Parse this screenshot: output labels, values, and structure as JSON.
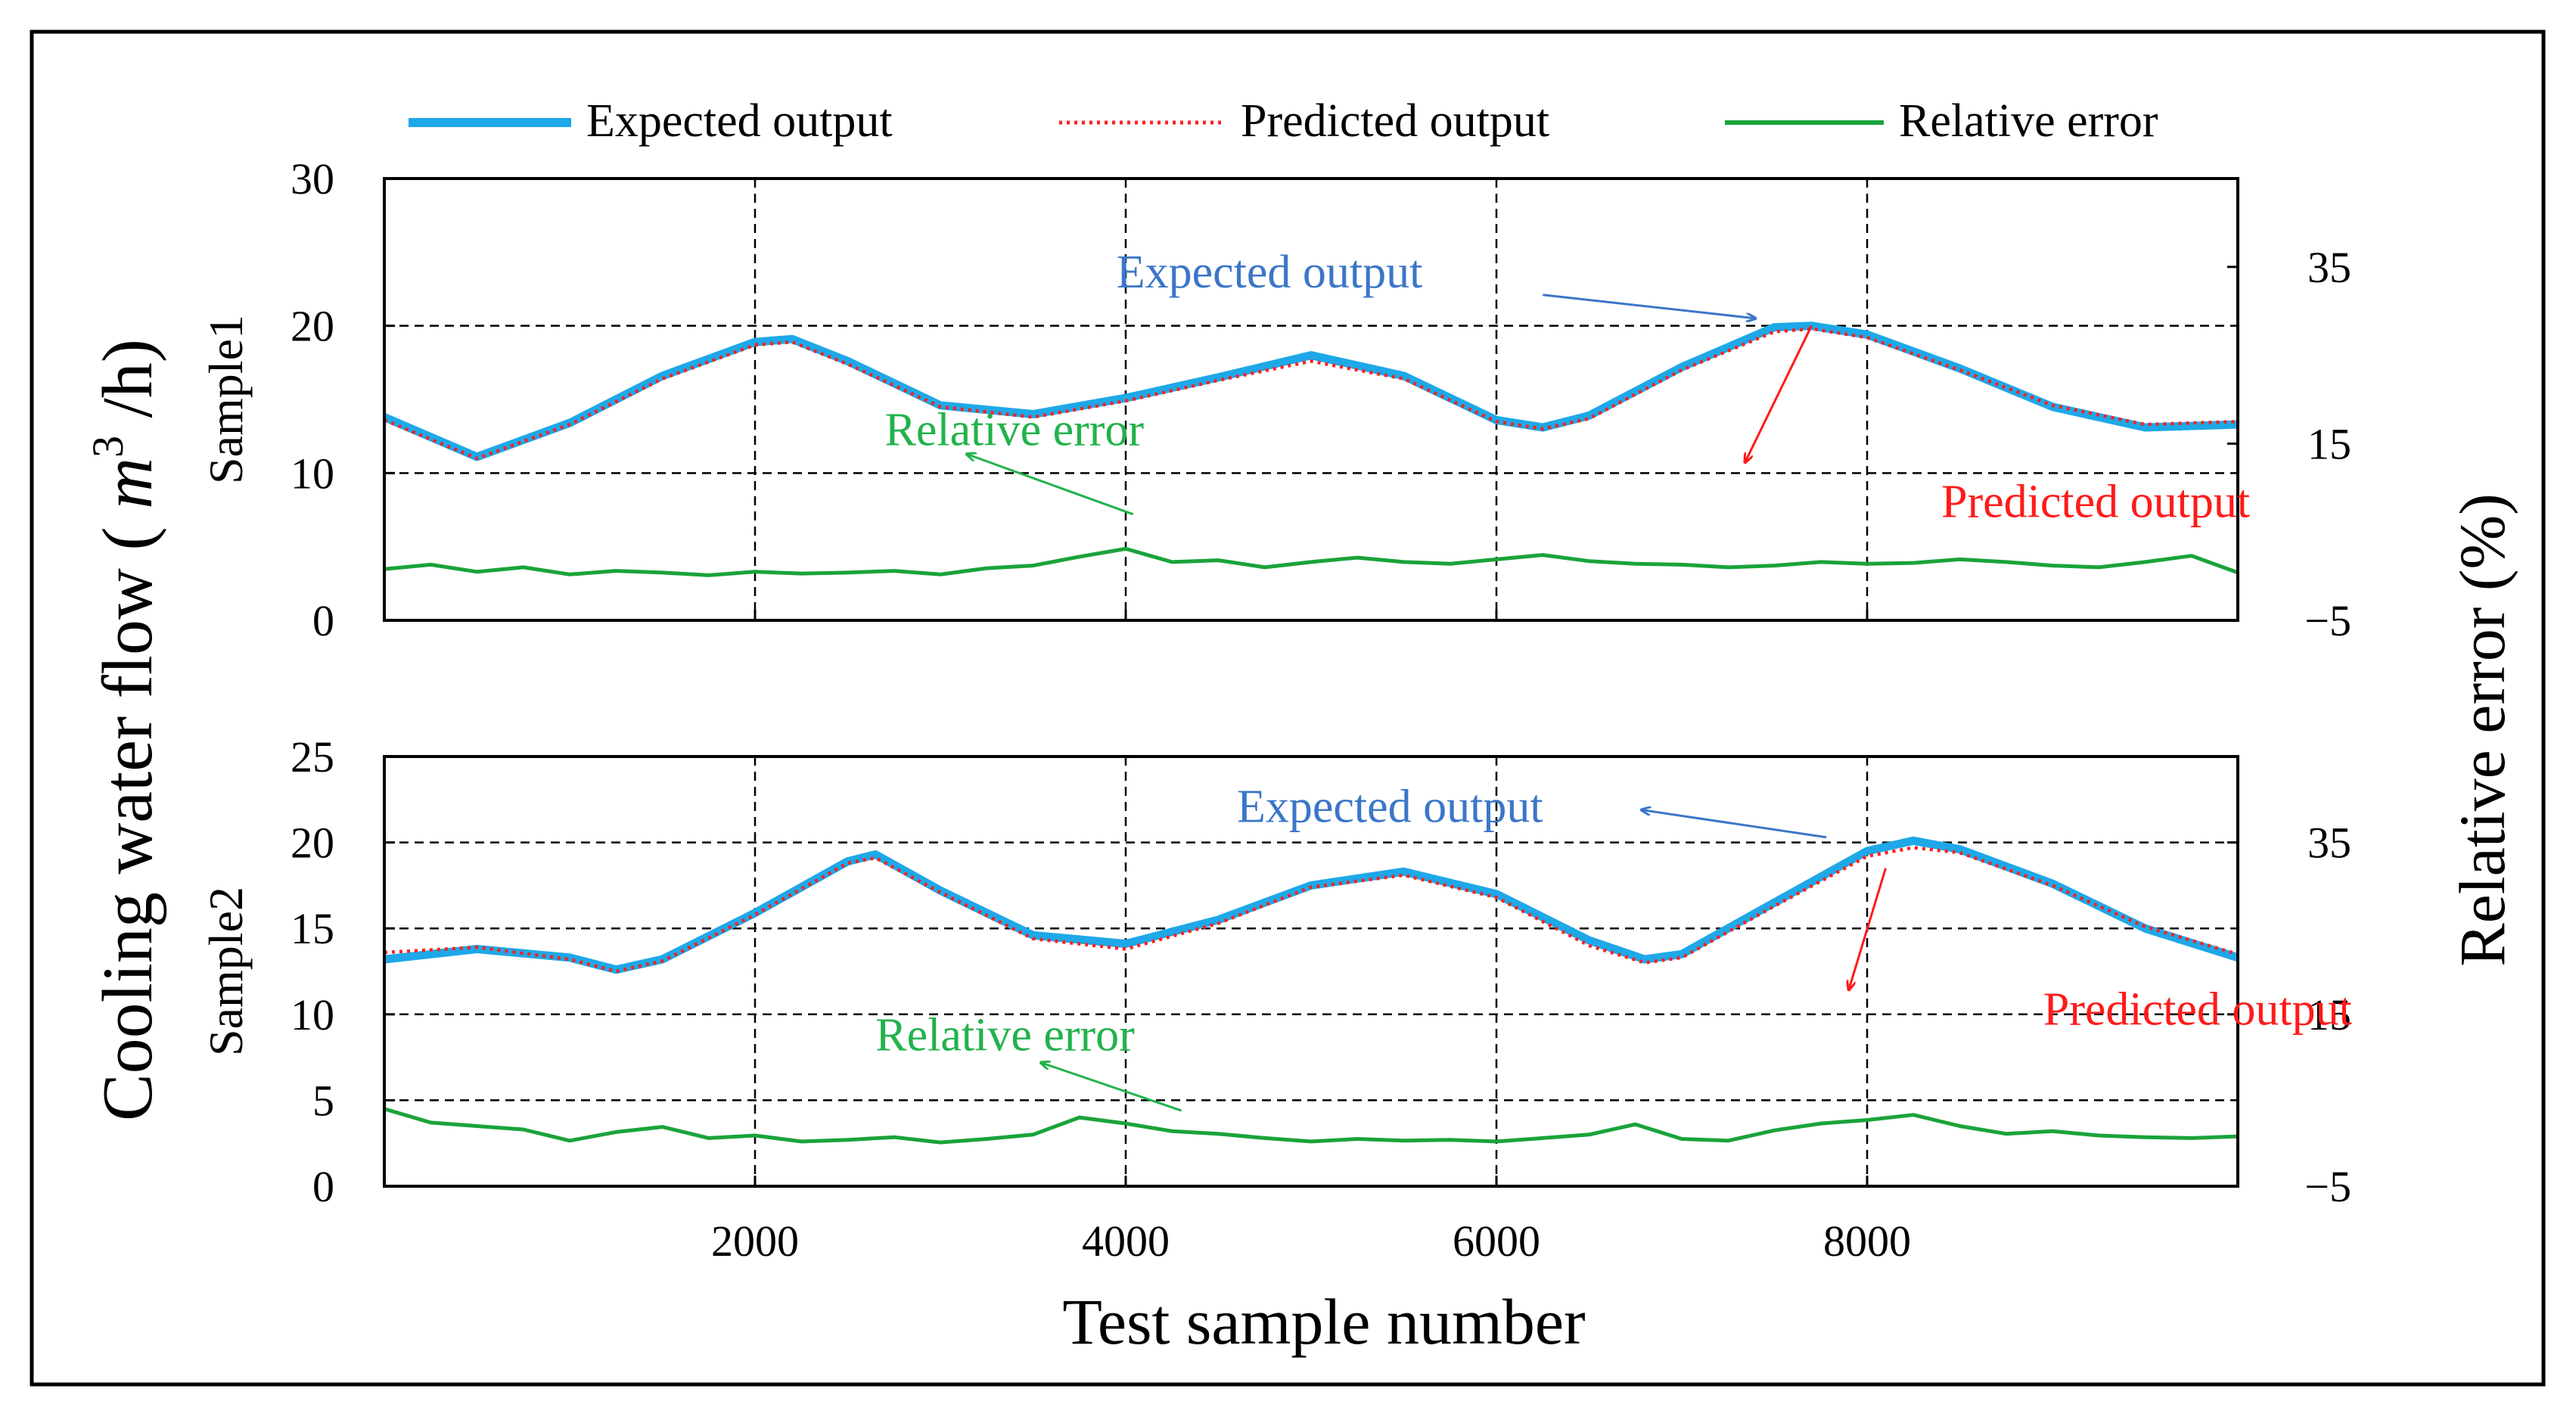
{
  "colors": {
    "expected": "#1ea8e8",
    "predicted": "#ff2020",
    "error": "#1aa33a",
    "annotation_expected": "#3b76c8",
    "annotation_predicted": "#ff1a1a",
    "annotation_error": "#22b24c",
    "grid": "#000000",
    "frame": "#000000"
  },
  "chart_data": {
    "type": "line",
    "title": "",
    "legend": [
      {
        "key": "expected",
        "label": "Expected output",
        "style": "solid-thick"
      },
      {
        "key": "predicted",
        "label": "Predicted output",
        "style": "dotted"
      },
      {
        "key": "error",
        "label": "Relative error",
        "style": "solid"
      }
    ],
    "legend_position": "top",
    "xlabel": "Test sample number",
    "ylabel_left": "Cooling water flow ( m³ /h)",
    "ylabel_left_parts": {
      "prefix": "Cooling water flow ( ",
      "var": "m",
      "sup": "3",
      "suffix": " /h)"
    },
    "ylabel_right": "Relative error (%)",
    "xlim": [
      0,
      10000
    ],
    "xticks": [
      2000,
      4000,
      6000,
      8000
    ],
    "xtick_labels": [
      "2000",
      "4000",
      "6000",
      "8000"
    ],
    "panels": [
      {
        "name": "Sample1",
        "ylim_left": [
          0,
          30
        ],
        "yticks_left": [
          0,
          10,
          20,
          30
        ],
        "ytick_labels_left": [
          "0",
          "10",
          "20",
          "30"
        ],
        "ylim_right": [
          -5,
          45
        ],
        "yticks_right": [
          -5,
          15,
          35
        ],
        "ytick_labels_right": [
          "−5",
          "15",
          "35"
        ],
        "gridlines_y": [
          10,
          20
        ],
        "series": [
          {
            "name": "Expected output",
            "key": "expected",
            "x": [
              0,
              500,
              1000,
              1500,
              2000,
              2200,
              2500,
              3000,
              3500,
              4000,
              4500,
              5000,
              5500,
              6000,
              6250,
              6500,
              7000,
              7500,
              7700,
              8000,
              8500,
              9000,
              9500,
              10000
            ],
            "y": [
              13.8,
              11.1,
              13.4,
              16.6,
              18.9,
              19.1,
              17.6,
              14.6,
              14.0,
              15.1,
              16.5,
              18.0,
              16.6,
              13.6,
              13.1,
              13.9,
              17.2,
              19.9,
              20.0,
              19.4,
              17.1,
              14.5,
              13.1,
              13.3
            ]
          },
          {
            "name": "Predicted output",
            "key": "predicted",
            "x": [
              0,
              500,
              1000,
              1500,
              2000,
              2200,
              2500,
              3000,
              3500,
              4000,
              4500,
              5000,
              5500,
              6000,
              6250,
              6500,
              7000,
              7500,
              7700,
              8000,
              8500,
              9000,
              9500,
              10000
            ],
            "y": [
              13.6,
              11.0,
              13.3,
              16.4,
              18.7,
              18.9,
              17.4,
              14.5,
              13.8,
              14.9,
              16.3,
              17.6,
              16.4,
              13.5,
              13.0,
              13.7,
              17.0,
              19.6,
              19.8,
              19.2,
              17.0,
              14.6,
              13.3,
              13.5
            ]
          },
          {
            "name": "Relative error",
            "key": "error",
            "axis": "right",
            "x": [
              0,
              250,
              500,
              750,
              1000,
              1250,
              1500,
              1750,
              2000,
              2250,
              2500,
              2750,
              3000,
              3250,
              3500,
              3750,
              4000,
              4250,
              4500,
              4750,
              5000,
              5250,
              5500,
              5750,
              6000,
              6250,
              6500,
              6750,
              7000,
              7250,
              7500,
              7750,
              8000,
              8250,
              8500,
              8750,
              9000,
              9250,
              9500,
              9750,
              10000
            ],
            "y": [
              0.8,
              1.3,
              0.5,
              1.0,
              0.2,
              0.6,
              0.4,
              0.1,
              0.5,
              0.3,
              0.4,
              0.6,
              0.2,
              0.9,
              1.2,
              2.2,
              3.1,
              1.6,
              1.8,
              1.0,
              1.6,
              2.1,
              1.6,
              1.4,
              1.9,
              2.4,
              1.7,
              1.4,
              1.3,
              1.0,
              1.2,
              1.6,
              1.4,
              1.5,
              1.9,
              1.6,
              1.2,
              1.0,
              1.6,
              2.3,
              0.4
            ]
          }
        ],
        "annotations": [
          {
            "key": "expected",
            "text": "Expected output",
            "x": 3950,
            "y": 22.6,
            "arrow_to": [
              7400,
              20.5
            ],
            "arrow_from": [
              6250,
              22.1
            ],
            "color_key": "annotation_expected"
          },
          {
            "key": "predicted",
            "text": "Predicted output",
            "x": 8400,
            "y": 7.0,
            "arrow_to": [
              7340,
              10.7
            ],
            "arrow_from": [
              7700,
              20.0
            ],
            "color_key": "annotation_predicted"
          },
          {
            "key": "error",
            "text": "Relative  error",
            "x": 2700,
            "y": 11.9,
            "arrow_to": [
              3140,
              11.3
            ],
            "arrow_from": [
              4040,
              7.2
            ],
            "color_key": "annotation_error"
          }
        ]
      },
      {
        "name": "Sample2",
        "ylim_left": [
          0,
          25
        ],
        "yticks_left": [
          0,
          5,
          10,
          15,
          20,
          25
        ],
        "ytick_labels_left": [
          "0",
          "5",
          "10",
          "15",
          "20",
          "25"
        ],
        "ylim_right": [
          -5,
          45
        ],
        "yticks_right": [
          -5,
          15,
          35
        ],
        "ytick_labels_right": [
          "−5",
          "15",
          "35"
        ],
        "gridlines_y": [
          5,
          10,
          15,
          20
        ],
        "series": [
          {
            "name": "Expected output",
            "key": "expected",
            "x": [
              0,
              500,
              1000,
              1250,
              1500,
              2000,
              2500,
              2650,
              3000,
              3500,
              4000,
              4500,
              5000,
              5500,
              6000,
              6500,
              6800,
              7000,
              7500,
              8000,
              8250,
              8500,
              9000,
              9500,
              10000
            ],
            "y": [
              13.2,
              13.8,
              13.3,
              12.6,
              13.2,
              15.9,
              18.9,
              19.3,
              17.2,
              14.6,
              14.1,
              15.5,
              17.5,
              18.3,
              17.0,
              14.3,
              13.2,
              13.5,
              16.5,
              19.5,
              20.1,
              19.6,
              17.6,
              15.0,
              13.3
            ]
          },
          {
            "name": "Predicted output",
            "key": "predicted",
            "x": [
              0,
              500,
              1000,
              1250,
              1500,
              2000,
              2500,
              2650,
              3000,
              3500,
              4000,
              4500,
              5000,
              5500,
              6000,
              6500,
              6800,
              7000,
              7500,
              8000,
              8250,
              8500,
              9000,
              9500,
              10000
            ],
            "y": [
              13.6,
              13.9,
              13.2,
              12.5,
              13.1,
              15.8,
              18.8,
              19.1,
              17.1,
              14.4,
              13.8,
              15.3,
              17.4,
              18.1,
              16.8,
              14.0,
              13.0,
              13.3,
              16.3,
              19.2,
              19.7,
              19.4,
              17.5,
              15.1,
              13.5
            ]
          },
          {
            "name": "Relative error",
            "key": "error",
            "axis": "right",
            "x": [
              0,
              250,
              500,
              750,
              1000,
              1250,
              1500,
              1750,
              2000,
              2250,
              2500,
              2750,
              3000,
              3250,
              3500,
              3750,
              4000,
              4250,
              4500,
              4750,
              5000,
              5250,
              5500,
              5750,
              6000,
              6250,
              6500,
              6750,
              7000,
              7250,
              7500,
              7750,
              8000,
              8250,
              8500,
              8750,
              9000,
              9250,
              9500,
              9750,
              10000
            ],
            "y": [
              4.0,
              2.4,
              2.0,
              1.6,
              0.3,
              1.3,
              1.9,
              0.6,
              0.9,
              0.2,
              0.4,
              0.7,
              0.1,
              0.5,
              1.0,
              3.0,
              2.3,
              1.4,
              1.1,
              0.6,
              0.2,
              0.5,
              0.3,
              0.4,
              0.2,
              0.6,
              1.0,
              2.2,
              0.5,
              0.3,
              1.5,
              2.3,
              2.7,
              3.3,
              2.0,
              1.1,
              1.4,
              0.9,
              0.7,
              0.6,
              0.8
            ]
          }
        ],
        "annotations": [
          {
            "key": "expected",
            "text": "Expected output",
            "x": 4600,
            "y": 21.2,
            "arrow_to": [
              6780,
              21.9
            ],
            "arrow_from": [
              7780,
              20.3
            ],
            "color_key": "annotation_expected"
          },
          {
            "key": "predicted",
            "text": "Predicted output",
            "x": 8950,
            "y": 9.4,
            "arrow_to": [
              7900,
              11.4
            ],
            "arrow_from": [
              8100,
              18.5
            ],
            "color_key": "annotation_predicted"
          },
          {
            "key": "error",
            "text": "Relative  error",
            "x": 2650,
            "y": 7.9,
            "arrow_to": [
              3540,
              7.2
            ],
            "arrow_from": [
              4300,
              4.4
            ],
            "color_key": "annotation_error"
          }
        ]
      }
    ]
  }
}
